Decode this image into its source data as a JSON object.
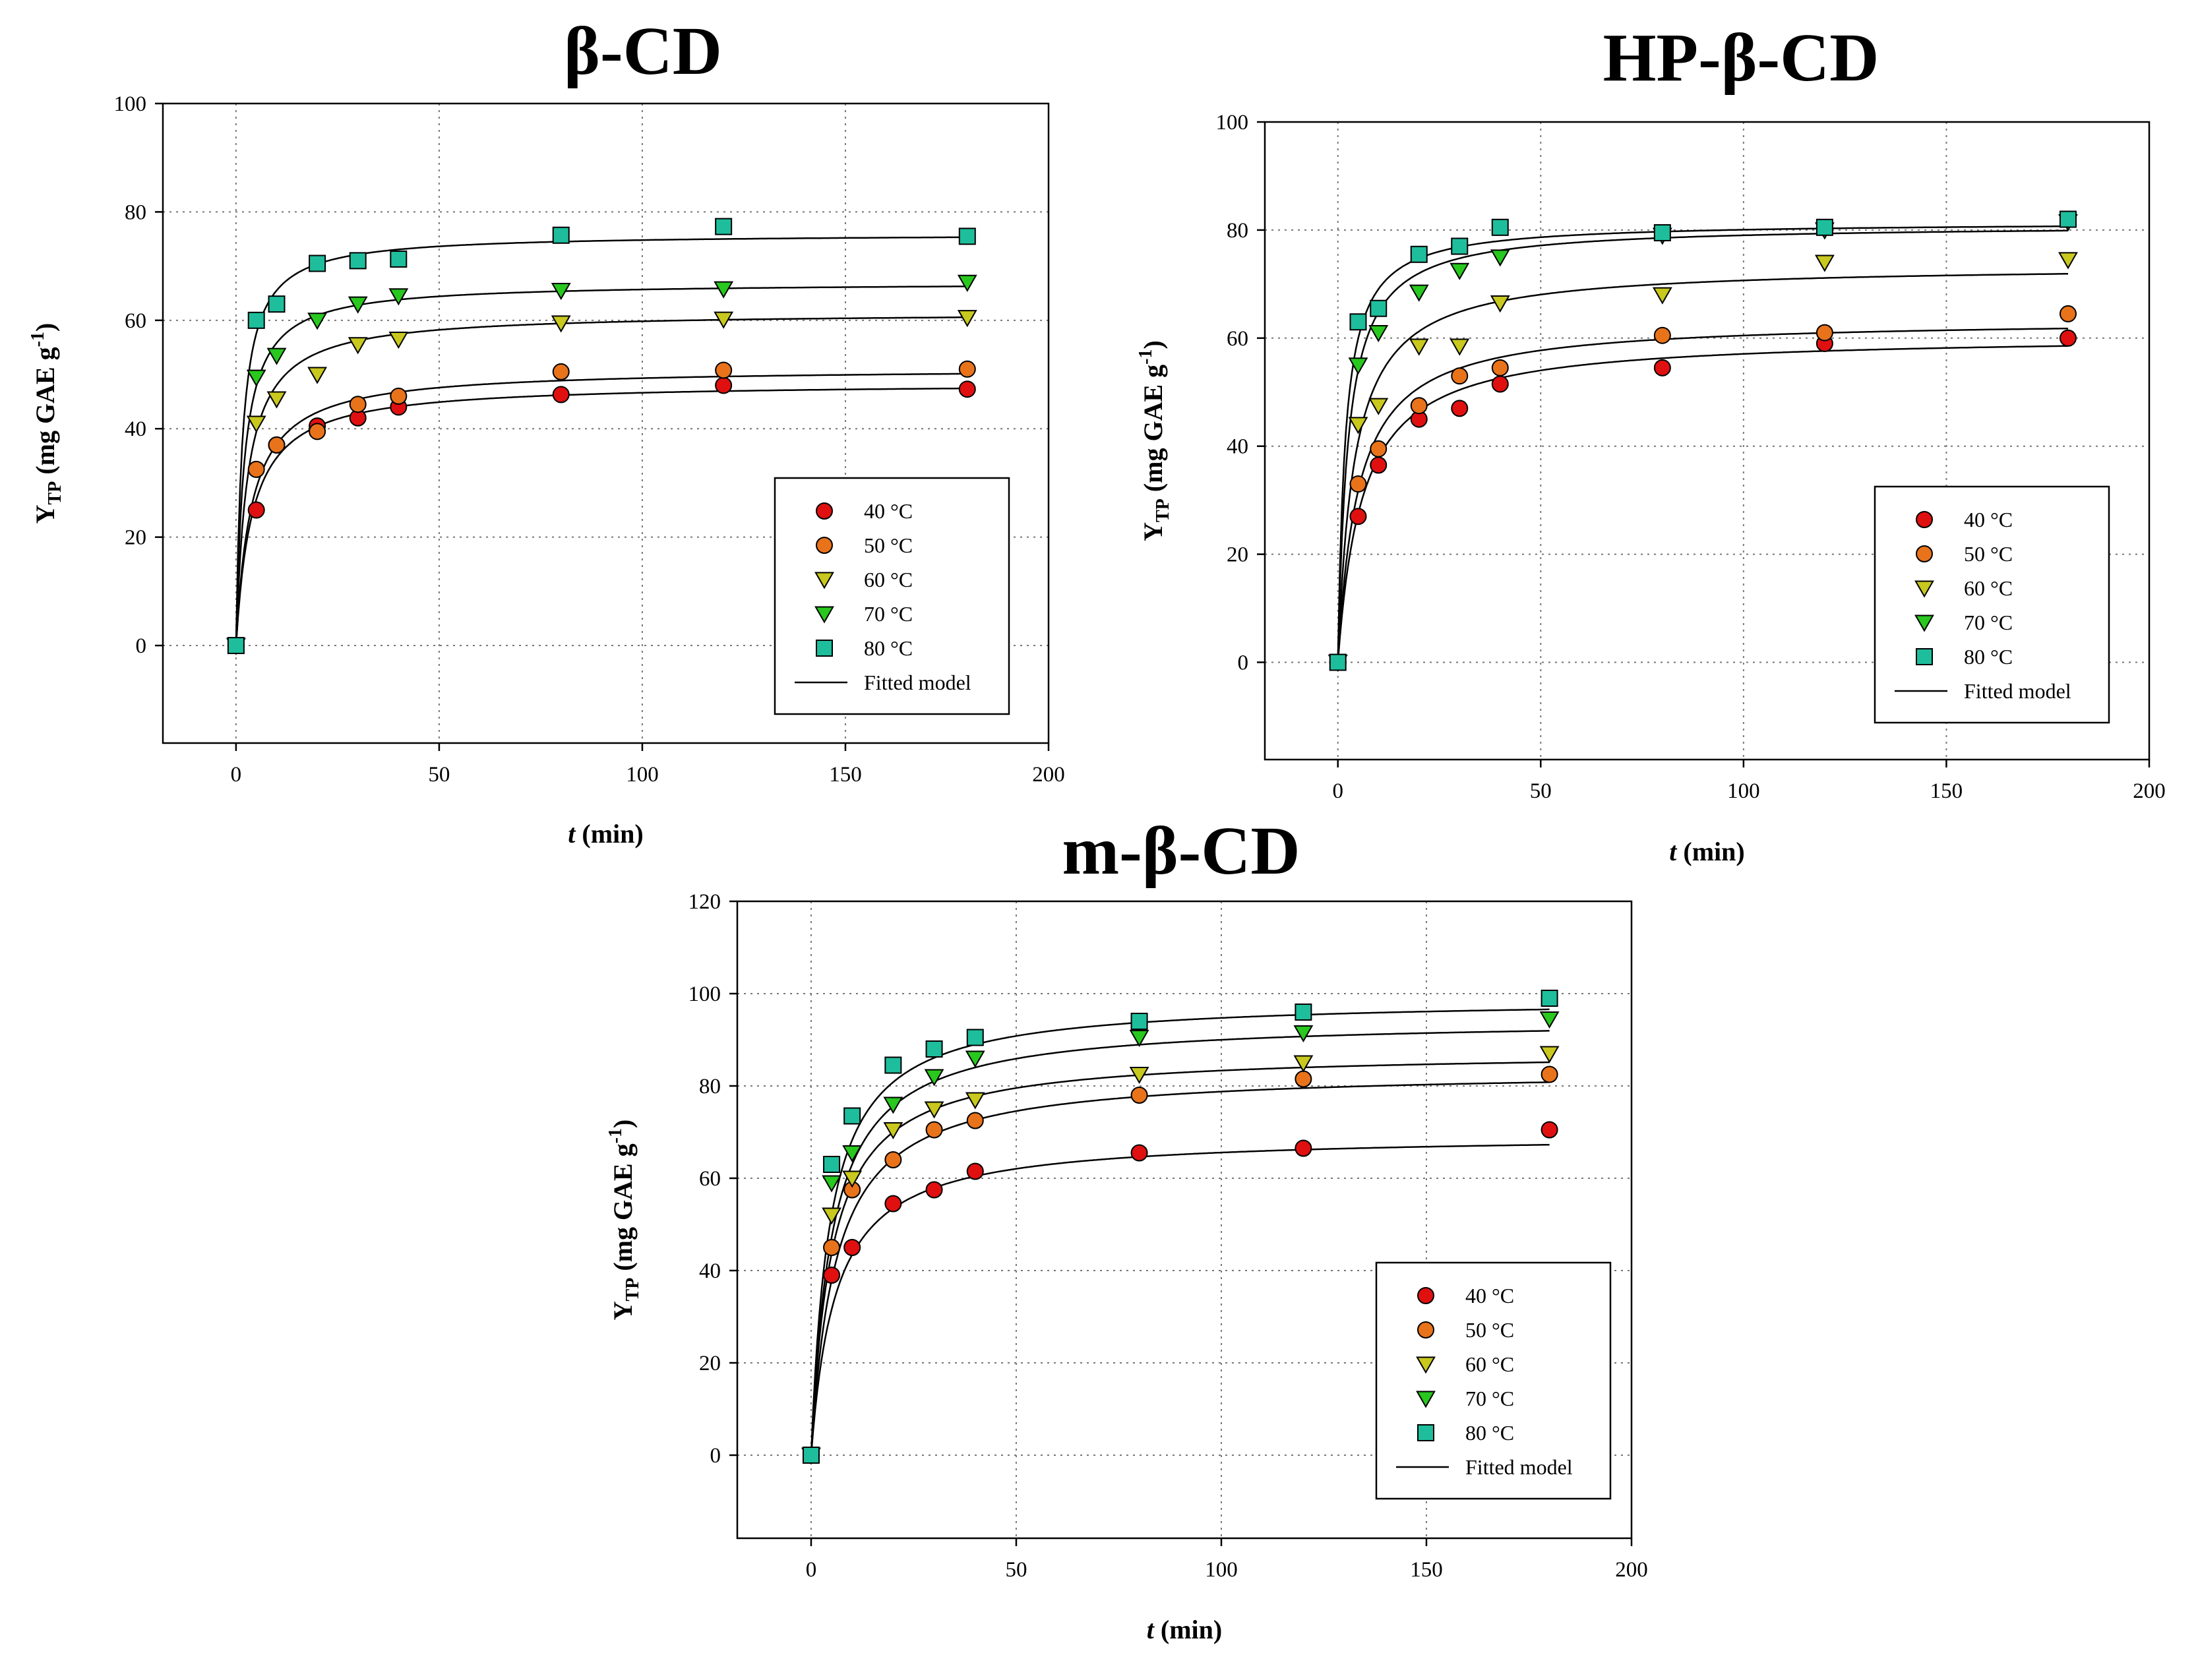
{
  "chart_data": [
    {
      "type": "scatter",
      "title": "β-CD",
      "xlabel": {
        "italic": "t",
        "rest": " (min)"
      },
      "ylabel": {
        "main": "Y",
        "sub": "TP",
        "unit": " (mg GAE g",
        "sup": "-1",
        "close": ")"
      },
      "xlim": [
        -18,
        200
      ],
      "ylim": [
        -18,
        100
      ],
      "xticks": [
        0,
        50,
        100,
        150,
        200
      ],
      "yticks": [
        0,
        20,
        40,
        60,
        80,
        100
      ],
      "grid": true,
      "legend_position": "bottom-right",
      "x": [
        0,
        5,
        10,
        20,
        30,
        40,
        80,
        120,
        180
      ],
      "series": [
        {
          "name": "40 °C",
          "marker": "circle",
          "color": "#e01010",
          "values": [
            0,
            25,
            37,
            40.5,
            42,
            44,
            46.3,
            48,
            47.3
          ],
          "fit": {
            "a": 48.5,
            "b": 4.0
          }
        },
        {
          "name": "50 °C",
          "marker": "circle",
          "color": "#e8731a",
          "values": [
            0,
            32.5,
            37,
            39.5,
            44.5,
            46,
            50.5,
            50.8,
            51
          ],
          "fit": {
            "a": 51.2,
            "b": 3.8
          }
        },
        {
          "name": "60 °C",
          "marker": "triangle",
          "color": "#c8c81e",
          "values": [
            0,
            41,
            45.5,
            50,
            55.5,
            56.5,
            59.5,
            60.2,
            60.5
          ],
          "fit": {
            "a": 61.5,
            "b": 2.8
          }
        },
        {
          "name": "70 °C",
          "marker": "triangle",
          "color": "#28c81e",
          "values": [
            0,
            49.5,
            53.5,
            60,
            63,
            64.5,
            65.5,
            65.8,
            67
          ],
          "fit": {
            "a": 67,
            "b": 2.0
          }
        },
        {
          "name": "80 °C",
          "marker": "square",
          "color": "#1ebe9c",
          "values": [
            0,
            60,
            63,
            70.5,
            71,
            71.3,
            75.7,
            77.3,
            75.5
          ],
          "fit": {
            "a": 76,
            "b": 1.6
          }
        }
      ],
      "fitted_label": "Fitted model"
    },
    {
      "type": "scatter",
      "title": "HP-β-CD",
      "xlabel": {
        "italic": "t",
        "rest": " (min)"
      },
      "ylabel": {
        "main": "Y",
        "sub": "TP",
        "unit": " (mg GAE g",
        "sup": "-1",
        "close": ")"
      },
      "xlim": [
        -18,
        200
      ],
      "ylim": [
        -18,
        100
      ],
      "xticks": [
        0,
        50,
        100,
        150,
        200
      ],
      "yticks": [
        0,
        20,
        40,
        60,
        80,
        100
      ],
      "grid": true,
      "legend_position": "bottom-right",
      "x": [
        0,
        5,
        10,
        20,
        30,
        40,
        80,
        120,
        180
      ],
      "series": [
        {
          "name": "40 °C",
          "marker": "circle",
          "color": "#e01010",
          "values": [
            0,
            27,
            36.5,
            45,
            47,
            51.5,
            54.5,
            59,
            60
          ],
          "fit": {
            "a": 60.5,
            "b": 6.0
          }
        },
        {
          "name": "50 °C",
          "marker": "circle",
          "color": "#e8731a",
          "values": [
            0,
            33,
            39.5,
            47.5,
            53,
            54.5,
            60.5,
            61,
            64.5
          ],
          "fit": {
            "a": 63.5,
            "b": 5.0
          }
        },
        {
          "name": "60 °C",
          "marker": "triangle",
          "color": "#c8c81e",
          "values": [
            0,
            44,
            47.5,
            58.5,
            58.5,
            66.5,
            68,
            74,
            74.5
          ],
          "fit": {
            "a": 73.5,
            "b": 4.0
          }
        },
        {
          "name": "70 °C",
          "marker": "triangle",
          "color": "#28c81e",
          "values": [
            0,
            55,
            61,
            68.5,
            72.5,
            75,
            79,
            80,
            81.5
          ],
          "fit": {
            "a": 81,
            "b": 2.5
          }
        },
        {
          "name": "80 °C",
          "marker": "square",
          "color": "#1ebe9c",
          "values": [
            0,
            63,
            65.5,
            75.5,
            77,
            80.5,
            79.5,
            80.5,
            82
          ],
          "fit": {
            "a": 81.5,
            "b": 1.8
          }
        }
      ],
      "fitted_label": "Fitted model"
    },
    {
      "type": "scatter",
      "title": "m-β-CD",
      "xlabel": {
        "italic": "t",
        "rest": " (min)"
      },
      "ylabel": {
        "main": "Y",
        "sub": "TP",
        "unit": " (mg GAE g",
        "sup": "-1",
        "close": ")"
      },
      "xlim": [
        -18,
        200
      ],
      "ylim": [
        -18,
        120
      ],
      "xticks": [
        0,
        50,
        100,
        150,
        200
      ],
      "yticks": [
        0,
        20,
        40,
        60,
        80,
        100,
        120
      ],
      "grid": true,
      "legend_position": "bottom-right",
      "x": [
        0,
        5,
        10,
        20,
        30,
        40,
        80,
        120,
        180
      ],
      "series": [
        {
          "name": "40 °C",
          "marker": "circle",
          "color": "#e01010",
          "values": [
            0,
            39,
            45,
            54.5,
            57.5,
            61.5,
            65.5,
            66.5,
            70.5
          ],
          "fit": {
            "a": 69.5,
            "b": 6.0
          }
        },
        {
          "name": "50 °C",
          "marker": "circle",
          "color": "#e8731a",
          "values": [
            0,
            45,
            57.5,
            64,
            70.5,
            72.5,
            78,
            81.5,
            82.5
          ],
          "fit": {
            "a": 83.5,
            "b": 6.0
          }
        },
        {
          "name": "60 °C",
          "marker": "triangle",
          "color": "#c8c81e",
          "values": [
            0,
            52,
            60,
            70.5,
            75,
            77,
            82.5,
            85,
            87
          ],
          "fit": {
            "a": 87.5,
            "b": 5.0
          }
        },
        {
          "name": "70 °C",
          "marker": "triangle",
          "color": "#28c81e",
          "values": [
            0,
            59,
            65.5,
            76,
            82,
            86,
            90.5,
            91.5,
            94.5
          ],
          "fit": {
            "a": 94.5,
            "b": 5.0
          }
        },
        {
          "name": "80 °C",
          "marker": "square",
          "color": "#1ebe9c",
          "values": [
            0,
            63,
            73.5,
            84.5,
            88,
            90.5,
            94,
            96,
            99
          ],
          "fit": {
            "a": 99,
            "b": 4.5
          }
        }
      ],
      "fitted_label": "Fitted model"
    }
  ]
}
